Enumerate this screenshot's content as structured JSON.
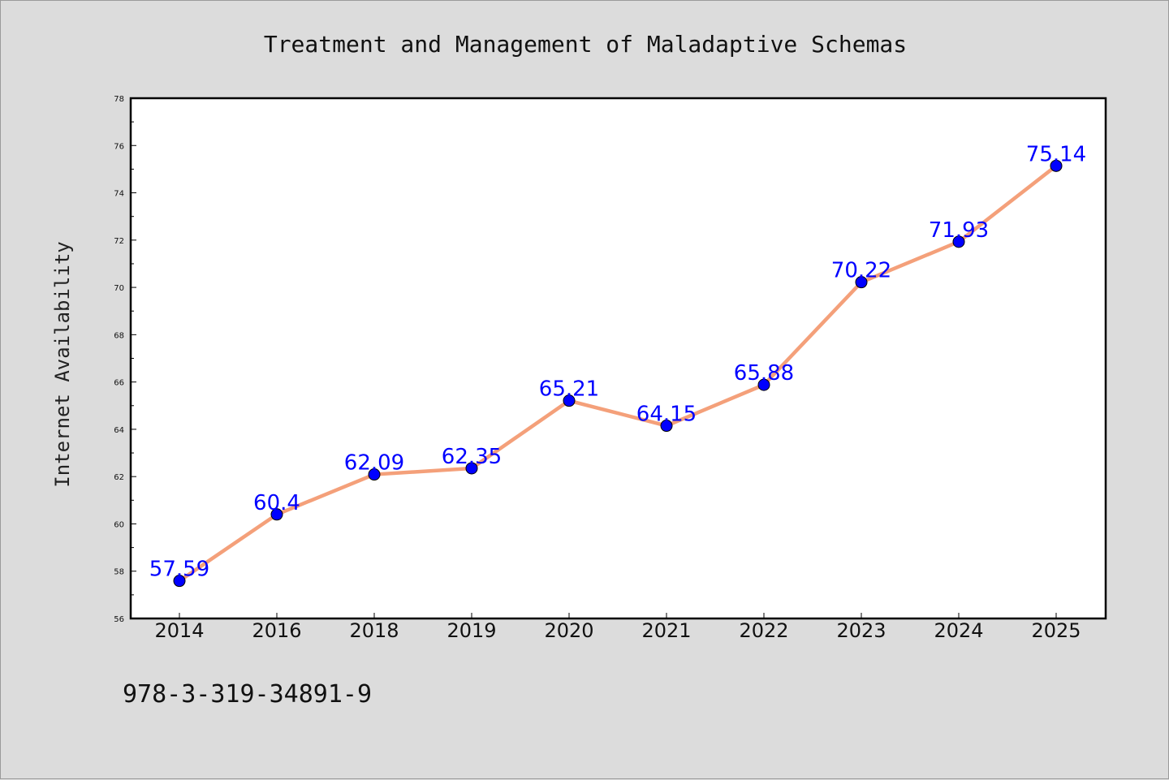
{
  "chart_data": {
    "type": "line",
    "title": "Treatment and Management of Maladaptive Schemas",
    "xlabel": "",
    "ylabel": "Internet Availability",
    "categories": [
      "2014",
      "2016",
      "2018",
      "2019",
      "2020",
      "2021",
      "2022",
      "2023",
      "2024",
      "2025"
    ],
    "series": [
      {
        "values": [
          57.59,
          60.4,
          62.09,
          62.35,
          65.21,
          64.15,
          65.88,
          70.22,
          71.93,
          75.14
        ],
        "data_labels": [
          "57.59",
          "60.4",
          "62.09",
          "62.35",
          "65.21",
          "64.15",
          "65.88",
          "70.22",
          "71.93",
          "75.14"
        ]
      }
    ],
    "ylim": [
      56,
      78
    ],
    "yticks": [
      "56",
      "58",
      "60",
      "62",
      "64",
      "66",
      "68",
      "70",
      "72",
      "74",
      "76",
      "78"
    ],
    "grid": false,
    "legend": "none",
    "colors": {
      "line": "#f4a07a",
      "marker": "#0000ff",
      "data_label": "#0000ff",
      "plot_background": "#ffffff",
      "page_background": "#dcdcdc"
    }
  },
  "footer_text": "978-3-319-34891-9"
}
